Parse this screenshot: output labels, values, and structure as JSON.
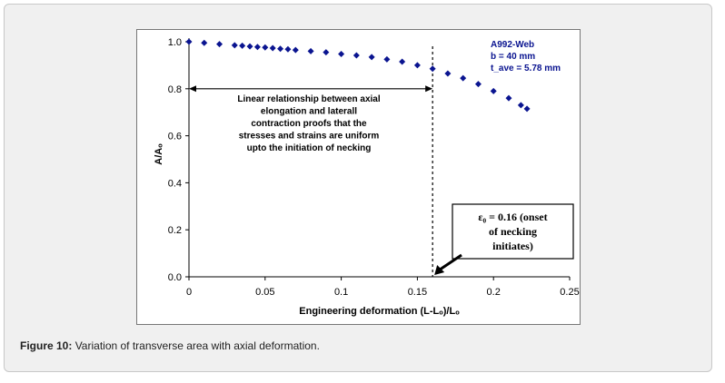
{
  "caption": {
    "label": "Figure 10:",
    "text": " Variation of transverse area with axial deformation."
  },
  "chart_data": {
    "type": "scatter",
    "xlabel": "Engineering deformation (L-Lₒ)/Lₒ",
    "ylabel": "A/Aₒ",
    "xlim": [
      0,
      0.25
    ],
    "ylim": [
      0,
      1.0
    ],
    "xticks": [
      0,
      0.05,
      0.1,
      0.15,
      0.2,
      0.25
    ],
    "xtick_labels": [
      "0",
      "0.05",
      "0.1",
      "0.15",
      "0.2",
      "0.25"
    ],
    "yticks": [
      0,
      0.2,
      0.4,
      0.6,
      0.8,
      1.0
    ],
    "ytick_labels": [
      "0.0",
      "0.2",
      "0.4",
      "0.6",
      "0.8",
      "1.0"
    ],
    "marker_color": "#0a1490",
    "series": [
      {
        "x": [
          0.0,
          0.01,
          0.02,
          0.03,
          0.035,
          0.04,
          0.045,
          0.05,
          0.055,
          0.06,
          0.065,
          0.07,
          0.08,
          0.09,
          0.1,
          0.11,
          0.12,
          0.13,
          0.14,
          0.15,
          0.16,
          0.17,
          0.18,
          0.19,
          0.2,
          0.21,
          0.218,
          0.222
        ],
        "y": [
          1.0,
          0.995,
          0.99,
          0.985,
          0.983,
          0.98,
          0.978,
          0.976,
          0.973,
          0.97,
          0.968,
          0.965,
          0.96,
          0.955,
          0.948,
          0.942,
          0.935,
          0.925,
          0.915,
          0.9,
          0.885,
          0.865,
          0.845,
          0.82,
          0.79,
          0.76,
          0.73,
          0.715
        ]
      }
    ],
    "vline_x": 0.16,
    "legend_text": [
      "A992-Web",
      "b = 40 mm",
      "t_ave = 5.78 mm"
    ],
    "annotation": {
      "lines": [
        "Linear relationship between axial",
        "elongation and laterall",
        "contraction proofs that the",
        "stresses and strains are uniform",
        "upto the initiation of necking"
      ]
    },
    "callout": {
      "lines": [
        "ε₀ = 0.16 (onset",
        "of necking",
        "initiates)"
      ]
    }
  }
}
